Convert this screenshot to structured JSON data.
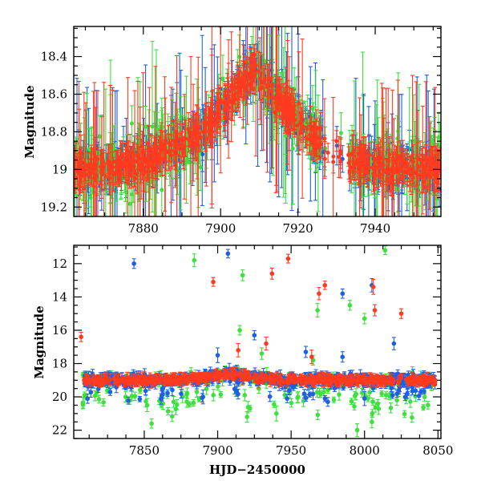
{
  "figure": {
    "xlabel": "HJD−2450000",
    "colors": {
      "blue": "#1f5fe0",
      "red": "#ff3b1f",
      "green": "#3ee03e"
    }
  },
  "chart_data": [
    {
      "type": "scatter",
      "panel": "top",
      "ylabel": "Magnitude",
      "xlim": [
        7862,
        7957
      ],
      "ylim": [
        19.25,
        18.24
      ],
      "y_inverted": true,
      "x_ticks": [
        7880,
        7900,
        7920,
        7940
      ],
      "y_ticks": [
        18.4,
        18.6,
        18.8,
        19,
        19.2
      ],
      "y_tick_labels": [
        "18.4",
        "18.6",
        "18.8",
        "19",
        "19.2"
      ],
      "error_bars": true,
      "series_colors": [
        "blue",
        "red",
        "green"
      ],
      "light_curve": [
        [
          7862,
          19.0
        ],
        [
          7868,
          18.99
        ],
        [
          7874,
          18.98
        ],
        [
          7880,
          18.96
        ],
        [
          7884,
          18.93
        ],
        [
          7888,
          18.88
        ],
        [
          7892,
          18.84
        ],
        [
          7896,
          18.8
        ],
        [
          7900,
          18.68
        ],
        [
          7904,
          18.58
        ],
        [
          7907,
          18.5
        ],
        [
          7909,
          18.46
        ],
        [
          7911,
          18.53
        ],
        [
          7914,
          18.62
        ],
        [
          7918,
          18.7
        ],
        [
          7922,
          18.78
        ],
        [
          7926,
          18.86
        ],
        [
          7930,
          18.92
        ],
        [
          7934,
          18.96
        ],
        [
          7940,
          18.98
        ],
        [
          7946,
          18.99
        ],
        [
          7957,
          19.0
        ]
      ]
    },
    {
      "type": "scatter",
      "panel": "bottom",
      "ylabel": "Magnitude",
      "xlabel": "HJD−2450000",
      "xlim": [
        7802,
        8052
      ],
      "ylim": [
        22.5,
        10.9
      ],
      "y_inverted": true,
      "x_ticks": [
        7850,
        7900,
        7950,
        8000,
        8050
      ],
      "y_ticks": [
        12,
        14,
        16,
        18,
        20,
        22
      ],
      "error_bars": true,
      "baseline": [
        [
          7805,
          19.0
        ],
        [
          7870,
          18.98
        ],
        [
          7890,
          18.85
        ],
        [
          7905,
          18.7
        ],
        [
          7912,
          18.62
        ],
        [
          7925,
          18.85
        ],
        [
          7940,
          18.98
        ],
        [
          8050,
          19.0
        ]
      ],
      "outliers": {
        "blue": [
          [
            7843,
            12.0
          ],
          [
            7907,
            11.4
          ],
          [
            7985,
            13.8
          ],
          [
            8005,
            13.3
          ],
          [
            7960,
            17.3
          ],
          [
            7925,
            16.3
          ],
          [
            7985,
            17.6
          ],
          [
            8020,
            16.8
          ],
          [
            7900,
            17.5
          ],
          [
            7890,
            20.0
          ],
          [
            7975,
            20.3
          ],
          [
            8000,
            20.1
          ]
        ],
        "red": [
          [
            7807,
            16.4
          ],
          [
            7897,
            13.1
          ],
          [
            7937,
            12.6
          ],
          [
            7948,
            11.7
          ],
          [
            7969,
            13.8
          ],
          [
            7973,
            13.3
          ],
          [
            8006,
            13.4
          ],
          [
            8007,
            14.8
          ],
          [
            8025,
            15.0
          ],
          [
            7914,
            17.2
          ],
          [
            7933,
            16.8
          ],
          [
            7964,
            17.6
          ]
        ],
        "green": [
          [
            7884,
            11.8
          ],
          [
            7917,
            12.7
          ],
          [
            7968,
            14.8
          ],
          [
            7990,
            14.5
          ],
          [
            8014,
            11.2
          ],
          [
            8000,
            15.3
          ],
          [
            7915,
            16.0
          ],
          [
            7930,
            17.4
          ],
          [
            7965,
            17.8
          ],
          [
            7855,
            21.6
          ],
          [
            7852,
            20.5
          ],
          [
            7920,
            21.2
          ],
          [
            7940,
            21.0
          ],
          [
            7995,
            22.0
          ],
          [
            8005,
            21.5
          ],
          [
            7870,
            20.3
          ]
        ]
      }
    }
  ]
}
